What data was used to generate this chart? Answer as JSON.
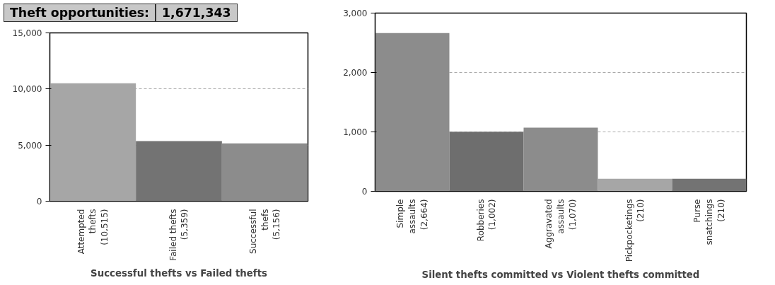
{
  "chart_data": [
    {
      "type": "bar",
      "title": "Successful thefts vs Failed thefts",
      "annotations": [
        "Theft opportunities:",
        "1,671,343"
      ],
      "categories": [
        "Attempted\nthefts\n(10,515)",
        "Failed thefts\n(5,359)",
        "Successful\nthefs\n(5,156)"
      ],
      "values": [
        10515,
        5359,
        5156
      ],
      "colors": [
        "#a6a6a6",
        "#737373",
        "#8c8c8c"
      ],
      "ylim": [
        0,
        15000
      ],
      "yticks": [
        {
          "value": 0,
          "label": "0"
        },
        {
          "value": 5000,
          "label": "5,000"
        },
        {
          "value": 10000,
          "label": "10,000"
        },
        {
          "value": 15000,
          "label": "15,000"
        }
      ],
      "grid": "y"
    },
    {
      "type": "bar",
      "title": "Silent thefts committed vs Violent thefts committed",
      "categories": [
        "Simple\nassaults\n(2,664)",
        "Robberies\n(1,002)",
        "Aggravated\nassaults\n(1,070)",
        "Pickpocketings\n(210)",
        "Purse\nsnatchings\n(210)"
      ],
      "values": [
        2664,
        1002,
        1070,
        210,
        210
      ],
      "colors": [
        "#8c8c8c",
        "#6e6e6e",
        "#8c8c8c",
        "#a6a6a6",
        "#737373"
      ],
      "ylim": [
        0,
        3000
      ],
      "yticks": [
        {
          "value": 0,
          "label": "0"
        },
        {
          "value": 1000,
          "label": "1,000"
        },
        {
          "value": 2000,
          "label": "2,000"
        },
        {
          "value": 3000,
          "label": "3,000"
        }
      ],
      "grid": "y"
    }
  ]
}
